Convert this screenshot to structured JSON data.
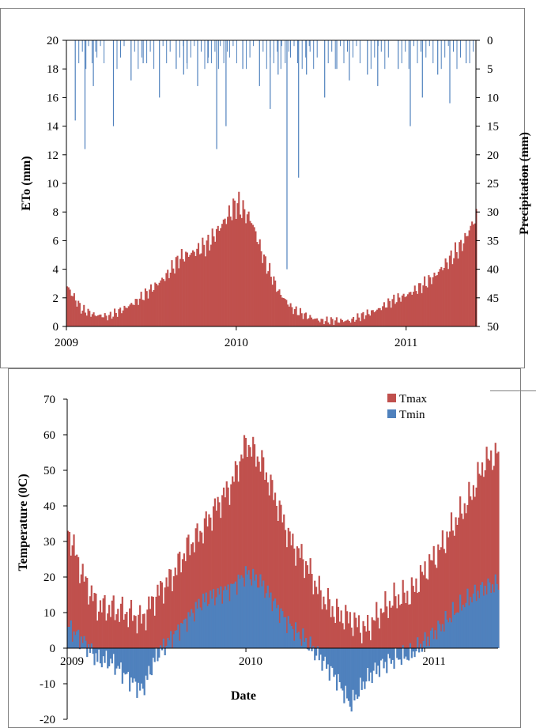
{
  "chart_data": [
    {
      "type": "bar",
      "panel": "top",
      "left_axis": {
        "label": "ETo (mm)",
        "range": [
          0,
          20
        ],
        "ticks": [
          "0",
          "2",
          "4",
          "6",
          "8",
          "10",
          "12",
          "14",
          "16",
          "18",
          "20"
        ]
      },
      "right_axis": {
        "label": "Precipitation  (mm)",
        "range": [
          50,
          0
        ],
        "ticks": [
          "0",
          "5",
          "10",
          "15",
          "20",
          "25",
          "30",
          "35",
          "40",
          "45",
          "50"
        ]
      },
      "x_axis": {
        "range": [
          "2009-01-01",
          "2011-05-31"
        ],
        "ticks": [
          "2009",
          "2010",
          "2011"
        ]
      },
      "series": [
        {
          "key": "eto",
          "axis": "left",
          "color": "#C0504D",
          "x": [
            "2009-01-01",
            "2009-02-01",
            "2009-03-01",
            "2009-04-01",
            "2009-05-01",
            "2009-06-01",
            "2009-07-01",
            "2009-08-01",
            "2009-09-01",
            "2009-10-01",
            "2009-11-01",
            "2009-12-01",
            "2010-01-01",
            "2010-02-01",
            "2010-03-01",
            "2010-04-01",
            "2010-05-01",
            "2010-06-01",
            "2010-07-01",
            "2010-08-01",
            "2010-09-01",
            "2010-10-01",
            "2010-11-01",
            "2010-12-01",
            "2011-01-01",
            "2011-02-01",
            "2011-03-01",
            "2011-04-01",
            "2011-05-01",
            "2011-05-31"
          ],
          "values": [
            2.8,
            1.2,
            0.8,
            0.7,
            1.2,
            1.8,
            2.6,
            3.5,
            4.8,
            5.2,
            5.8,
            7.2,
            8.6,
            7.4,
            4.6,
            2.4,
            1.2,
            0.7,
            0.4,
            0.4,
            0.4,
            0.8,
            1.2,
            1.8,
            2.2,
            2.8,
            3.5,
            4.6,
            5.8,
            7.8
          ]
        },
        {
          "key": "precipitation",
          "axis": "right",
          "color": "#4F81BD",
          "x": [
            "2009-01-20",
            "2009-02-10",
            "2009-02-28",
            "2009-04-12",
            "2009-05-20",
            "2009-06-15",
            "2009-07-20",
            "2009-08-25",
            "2009-09-10",
            "2009-10-10",
            "2009-11-01",
            "2009-11-20",
            "2009-12-10",
            "2010-01-15",
            "2010-02-20",
            "2010-03-15",
            "2010-04-01",
            "2010-04-20",
            "2010-05-15",
            "2010-06-01",
            "2010-07-10",
            "2010-08-05",
            "2010-09-01",
            "2010-10-10",
            "2010-11-01",
            "2010-12-15",
            "2011-01-10",
            "2011-02-05",
            "2011-03-10",
            "2011-04-05",
            "2011-05-10"
          ],
          "values": [
            14,
            19,
            8,
            15,
            7,
            4,
            10,
            5,
            6,
            8,
            4,
            19,
            15,
            5,
            8,
            12,
            6,
            40,
            24,
            6,
            10,
            5,
            7,
            6,
            8,
            5,
            15,
            10,
            6,
            11,
            4
          ]
        }
      ]
    },
    {
      "type": "bar",
      "panel": "bottom",
      "y_axis": {
        "label": "Temperature (0C)",
        "range": [
          -20,
          70
        ],
        "ticks": [
          "-20",
          "-10",
          "0",
          "10",
          "20",
          "30",
          "40",
          "50",
          "60",
          "70"
        ]
      },
      "x_axis": {
        "label": "Date",
        "range": [
          "2009-01-01",
          "2011-05-31"
        ],
        "ticks": [
          "2009",
          "2010",
          "2011"
        ]
      },
      "legend": {
        "placement": "top-right",
        "entries": [
          "Tmax",
          "Tmin"
        ]
      },
      "series": [
        {
          "name": "Tmax",
          "color": "#C0504D",
          "x": [
            "2009-01-01",
            "2009-02-01",
            "2009-03-01",
            "2009-04-01",
            "2009-05-01",
            "2009-06-01",
            "2009-07-01",
            "2009-08-01",
            "2009-09-01",
            "2009-10-01",
            "2009-11-01",
            "2009-12-01",
            "2010-01-01",
            "2010-02-01",
            "2010-03-01",
            "2010-04-01",
            "2010-05-01",
            "2010-06-01",
            "2010-07-01",
            "2010-08-01",
            "2010-09-01",
            "2010-10-01",
            "2010-11-01",
            "2010-12-01",
            "2011-01-01",
            "2011-02-01",
            "2011-03-01",
            "2011-04-01",
            "2011-05-01",
            "2011-05-31"
          ],
          "values": [
            33,
            20,
            12,
            11,
            10,
            8,
            15,
            20,
            28,
            33,
            40,
            46,
            58,
            52,
            42,
            30,
            24,
            15,
            10,
            8,
            5,
            10,
            14,
            15,
            22,
            28,
            35,
            42,
            52,
            55
          ]
        },
        {
          "name": "Tmin",
          "color": "#4F81BD",
          "x": [
            "2009-01-01",
            "2009-02-01",
            "2009-03-01",
            "2009-04-01",
            "2009-05-01",
            "2009-06-01",
            "2009-07-01",
            "2009-08-01",
            "2009-09-01",
            "2009-10-01",
            "2009-11-01",
            "2009-12-01",
            "2010-01-01",
            "2010-02-01",
            "2010-03-01",
            "2010-04-01",
            "2010-05-01",
            "2010-06-01",
            "2010-07-01",
            "2010-08-01",
            "2010-09-01",
            "2010-10-01",
            "2010-11-01",
            "2010-12-01",
            "2011-01-01",
            "2011-02-01",
            "2011-03-01",
            "2011-04-01",
            "2011-05-01",
            "2011-05-31"
          ],
          "values": [
            6,
            2,
            -3,
            -4,
            -8,
            -12,
            -2,
            3,
            8,
            13,
            15,
            17,
            21,
            18,
            12,
            6,
            2,
            -3,
            -8,
            -16,
            -9,
            -5,
            -3,
            -2,
            2,
            6,
            10,
            14,
            17,
            18
          ]
        }
      ]
    }
  ]
}
